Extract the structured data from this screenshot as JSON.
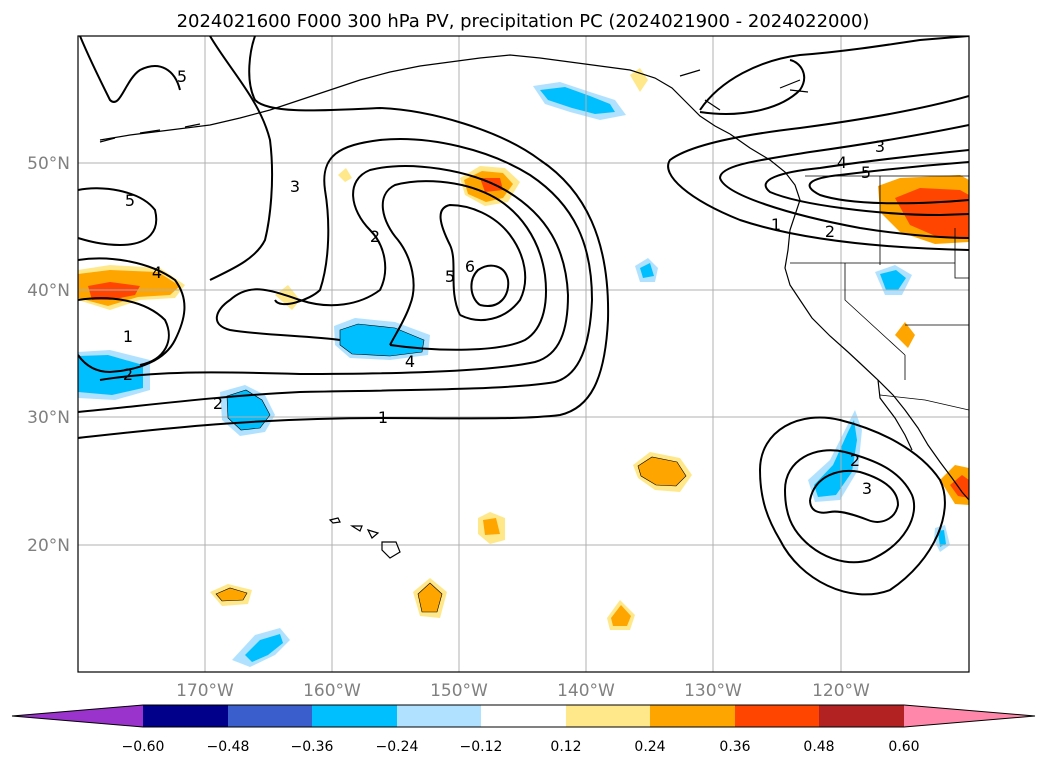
{
  "title": "2024021600 F000 300 hPa PV, precipitation PC (2024021900 - 2024022000)",
  "lat_labels": [
    "50°N",
    "40°N",
    "30°N",
    "20°N"
  ],
  "lon_labels": [
    "170°W",
    "160°W",
    "150°W",
    "140°W",
    "130°W",
    "120°W"
  ],
  "colorbar": {
    "ticks": [
      "−0.60",
      "−0.48",
      "−0.36",
      "−0.24",
      "−0.12",
      "0.12",
      "0.24",
      "0.36",
      "0.48",
      "0.60"
    ],
    "colors": [
      "#9933cc",
      "#00008b",
      "#3a5fcd",
      "#00bfff",
      "#b0e2ff",
      "#ffffff",
      "#ffe88a",
      "#ffa500",
      "#ff4500",
      "#b22222",
      "#ff88aa"
    ]
  },
  "contour_labels": {
    "c1": "5",
    "c2": "3",
    "c3": "2",
    "c4": "5",
    "c5": "6",
    "c6": "5",
    "c7": "4",
    "c8": "4",
    "c9": "1",
    "c10": "2",
    "c11": "2",
    "c12": "1",
    "c13": "4",
    "c14": "3",
    "c15": "5",
    "c16": "1",
    "c17": "2",
    "c18": "2",
    "c19": "3"
  }
}
